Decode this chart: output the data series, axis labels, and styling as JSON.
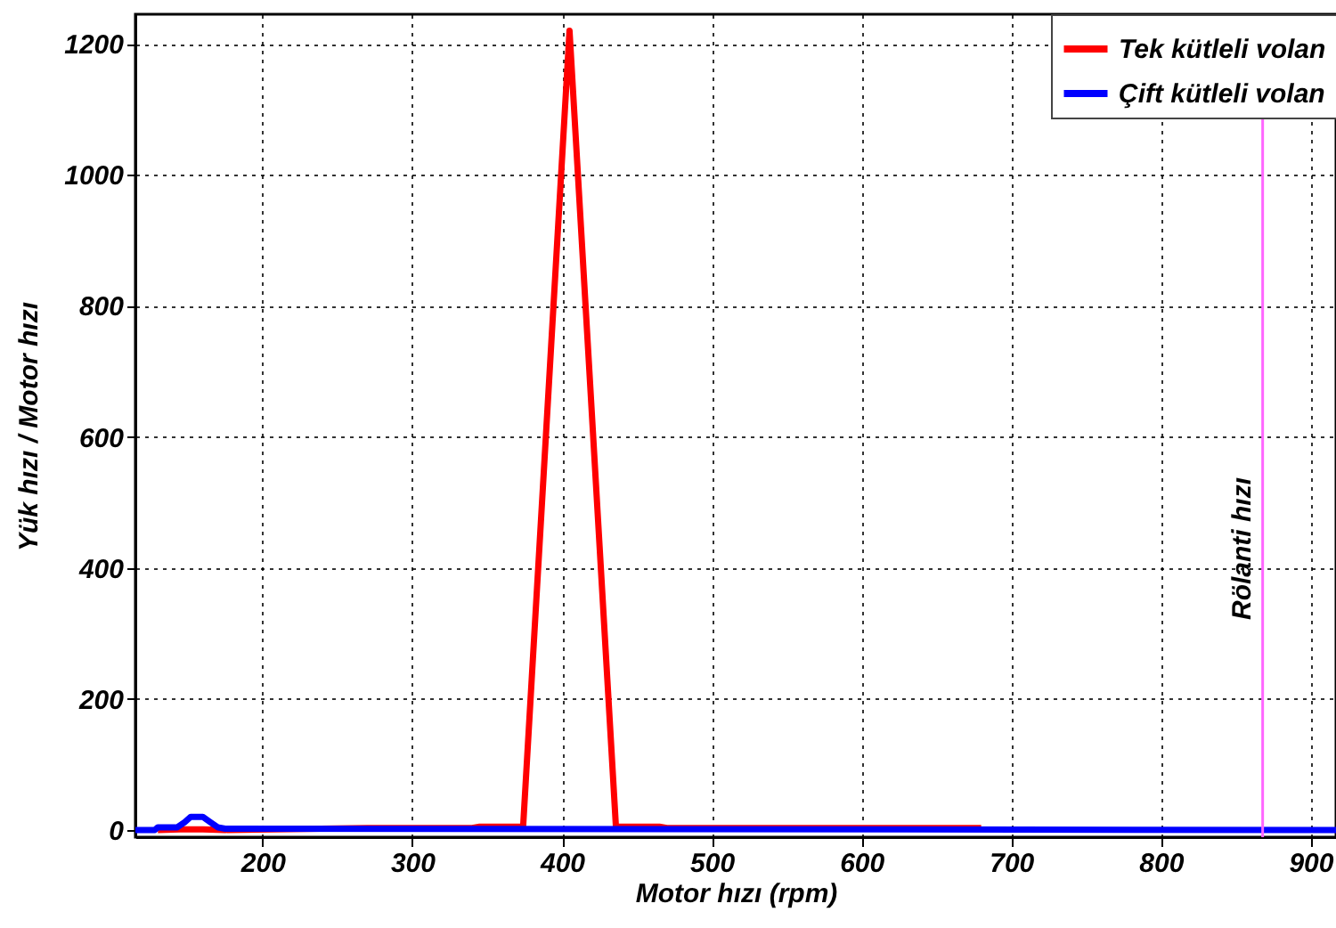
{
  "chart_data": {
    "type": "line",
    "xlabel": "Motor hızı (rpm)",
    "ylabel": "Yük hızı / Motor hızı",
    "xlim": [
      115,
      917
    ],
    "ylim": [
      -11,
      1245
    ],
    "xticks": [
      200,
      300,
      400,
      500,
      600,
      700,
      800,
      900
    ],
    "yticks": [
      0,
      200,
      400,
      600,
      800,
      1000,
      1200
    ],
    "grid": true,
    "legend": "top right",
    "line_style": "solid",
    "marker": "none",
    "series": [
      {
        "name": "Tek kütleli volan",
        "color": "#ff0000",
        "x": [
          130,
          145,
          160,
          175,
          270,
          340,
          345,
          374,
          405,
          436,
          440,
          465,
          470,
          680
        ],
        "values": [
          0,
          1,
          1,
          0,
          3,
          3,
          5,
          5,
          1220,
          5,
          5,
          5,
          3,
          3
        ]
      },
      {
        "name": "Çift kütleli volan",
        "color": "#0000ff",
        "x": [
          115,
          128,
          130,
          143,
          148,
          152,
          160,
          165,
          170,
          175,
          917
        ],
        "values": [
          0,
          0,
          4,
          4,
          12,
          20,
          20,
          12,
          4,
          2,
          0
        ]
      }
    ],
    "ref_lines": [
      {
        "axis": "x",
        "value": 868,
        "label": "Rölanti hızı",
        "color": "#ff66ff",
        "line_style": "solid"
      }
    ]
  }
}
